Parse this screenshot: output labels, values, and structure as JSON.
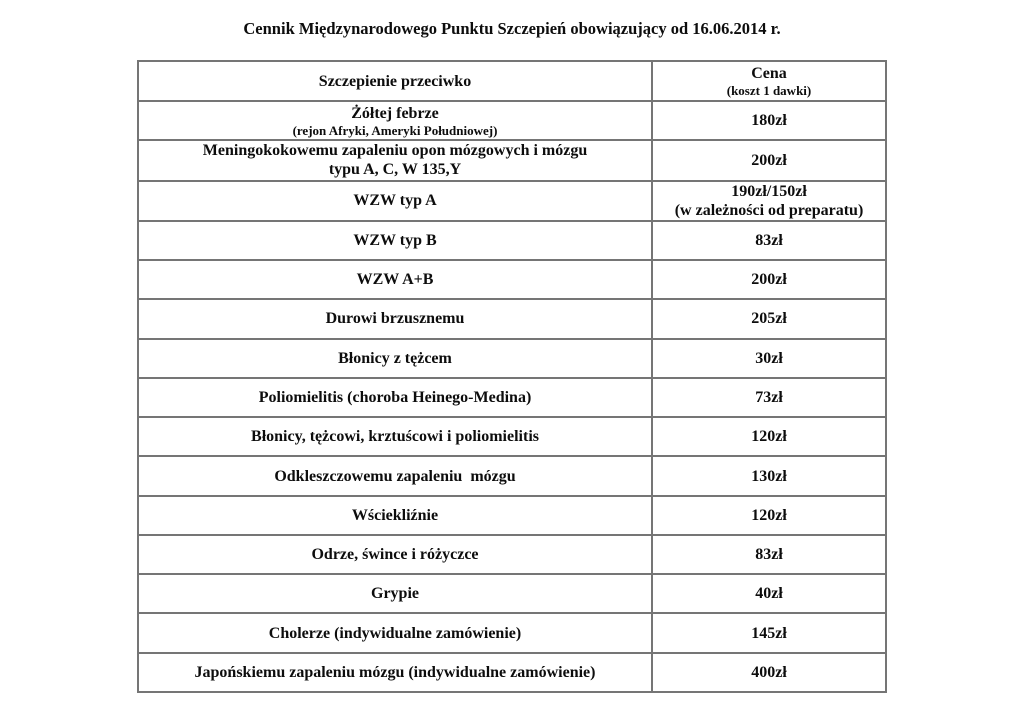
{
  "page": {
    "title": "Cennik Międzynarodowego Punktu Szczepień obowiązujący od 16.06.2014 r."
  },
  "colors": {
    "background": "#ffffff",
    "text": "#0d0d0d",
    "table_border": "#757575"
  },
  "table": {
    "header": {
      "vaccine_column": "Szczepienie przeciwko",
      "price_column": "Cena",
      "price_column_sub": "(koszt 1 dawki)"
    },
    "rows": [
      {
        "vaccine_lines": [
          {
            "text": "Żółtej febrze",
            "small": false
          },
          {
            "text": "(rejon Afryki, Ameryki Południowej)",
            "small": true
          }
        ],
        "price_lines": [
          {
            "text": "180zł",
            "small": false
          }
        ]
      },
      {
        "vaccine_lines": [
          {
            "text": "Meningokokowemu zapaleniu opon mózgowych i mózgu",
            "small": false
          },
          {
            "text": "typu A, C, W 135,Y",
            "small": false
          }
        ],
        "price_lines": [
          {
            "text": "200zł",
            "small": false
          }
        ]
      },
      {
        "vaccine_lines": [
          {
            "text": "WZW typ A",
            "small": false
          }
        ],
        "price_lines": [
          {
            "text": "190zł/150zł",
            "small": false
          },
          {
            "text": "(w zależności od preparatu)",
            "small": false
          }
        ]
      },
      {
        "vaccine_lines": [
          {
            "text": "WZW typ B",
            "small": false
          }
        ],
        "price_lines": [
          {
            "text": "83zł",
            "small": false
          }
        ]
      },
      {
        "vaccine_lines": [
          {
            "text": "WZW A+B",
            "small": false
          }
        ],
        "price_lines": [
          {
            "text": "200zł",
            "small": false
          }
        ]
      },
      {
        "vaccine_lines": [
          {
            "text": "Durowi brzusznemu",
            "small": false
          }
        ],
        "price_lines": [
          {
            "text": "205zł",
            "small": false
          }
        ]
      },
      {
        "vaccine_lines": [
          {
            "text": "Błonicy z tężcem",
            "small": false
          }
        ],
        "price_lines": [
          {
            "text": "30zł",
            "small": false
          }
        ]
      },
      {
        "vaccine_lines": [
          {
            "text": "Poliomielitis (choroba Heinego-Medina)",
            "small": false
          }
        ],
        "price_lines": [
          {
            "text": "73zł",
            "small": false
          }
        ]
      },
      {
        "vaccine_lines": [
          {
            "text": "Błonicy, tężcowi, krztuścowi i poliomielitis",
            "small": false
          }
        ],
        "price_lines": [
          {
            "text": "120zł",
            "small": false
          }
        ]
      },
      {
        "vaccine_lines": [
          {
            "text": "Odkleszczowemu zapaleniu  mózgu",
            "small": false
          }
        ],
        "price_lines": [
          {
            "text": "130zł",
            "small": false
          }
        ]
      },
      {
        "vaccine_lines": [
          {
            "text": "Wściekliźnie",
            "small": false
          }
        ],
        "price_lines": [
          {
            "text": "120zł",
            "small": false
          }
        ]
      },
      {
        "vaccine_lines": [
          {
            "text": "Odrze, śwince i różyczce",
            "small": false
          }
        ],
        "price_lines": [
          {
            "text": "83zł",
            "small": false
          }
        ]
      },
      {
        "vaccine_lines": [
          {
            "text": "Grypie",
            "small": false
          }
        ],
        "price_lines": [
          {
            "text": "40zł",
            "small": false
          }
        ]
      },
      {
        "vaccine_lines": [
          {
            "text": "Cholerze (indywidualne zamówienie)",
            "small": false
          }
        ],
        "price_lines": [
          {
            "text": "145zł",
            "small": false
          }
        ]
      },
      {
        "vaccine_lines": [
          {
            "text": "Japońskiemu zapaleniu mózgu (indywidualne zamówienie)",
            "small": false
          }
        ],
        "price_lines": [
          {
            "text": "400zł",
            "small": false
          }
        ]
      }
    ]
  }
}
